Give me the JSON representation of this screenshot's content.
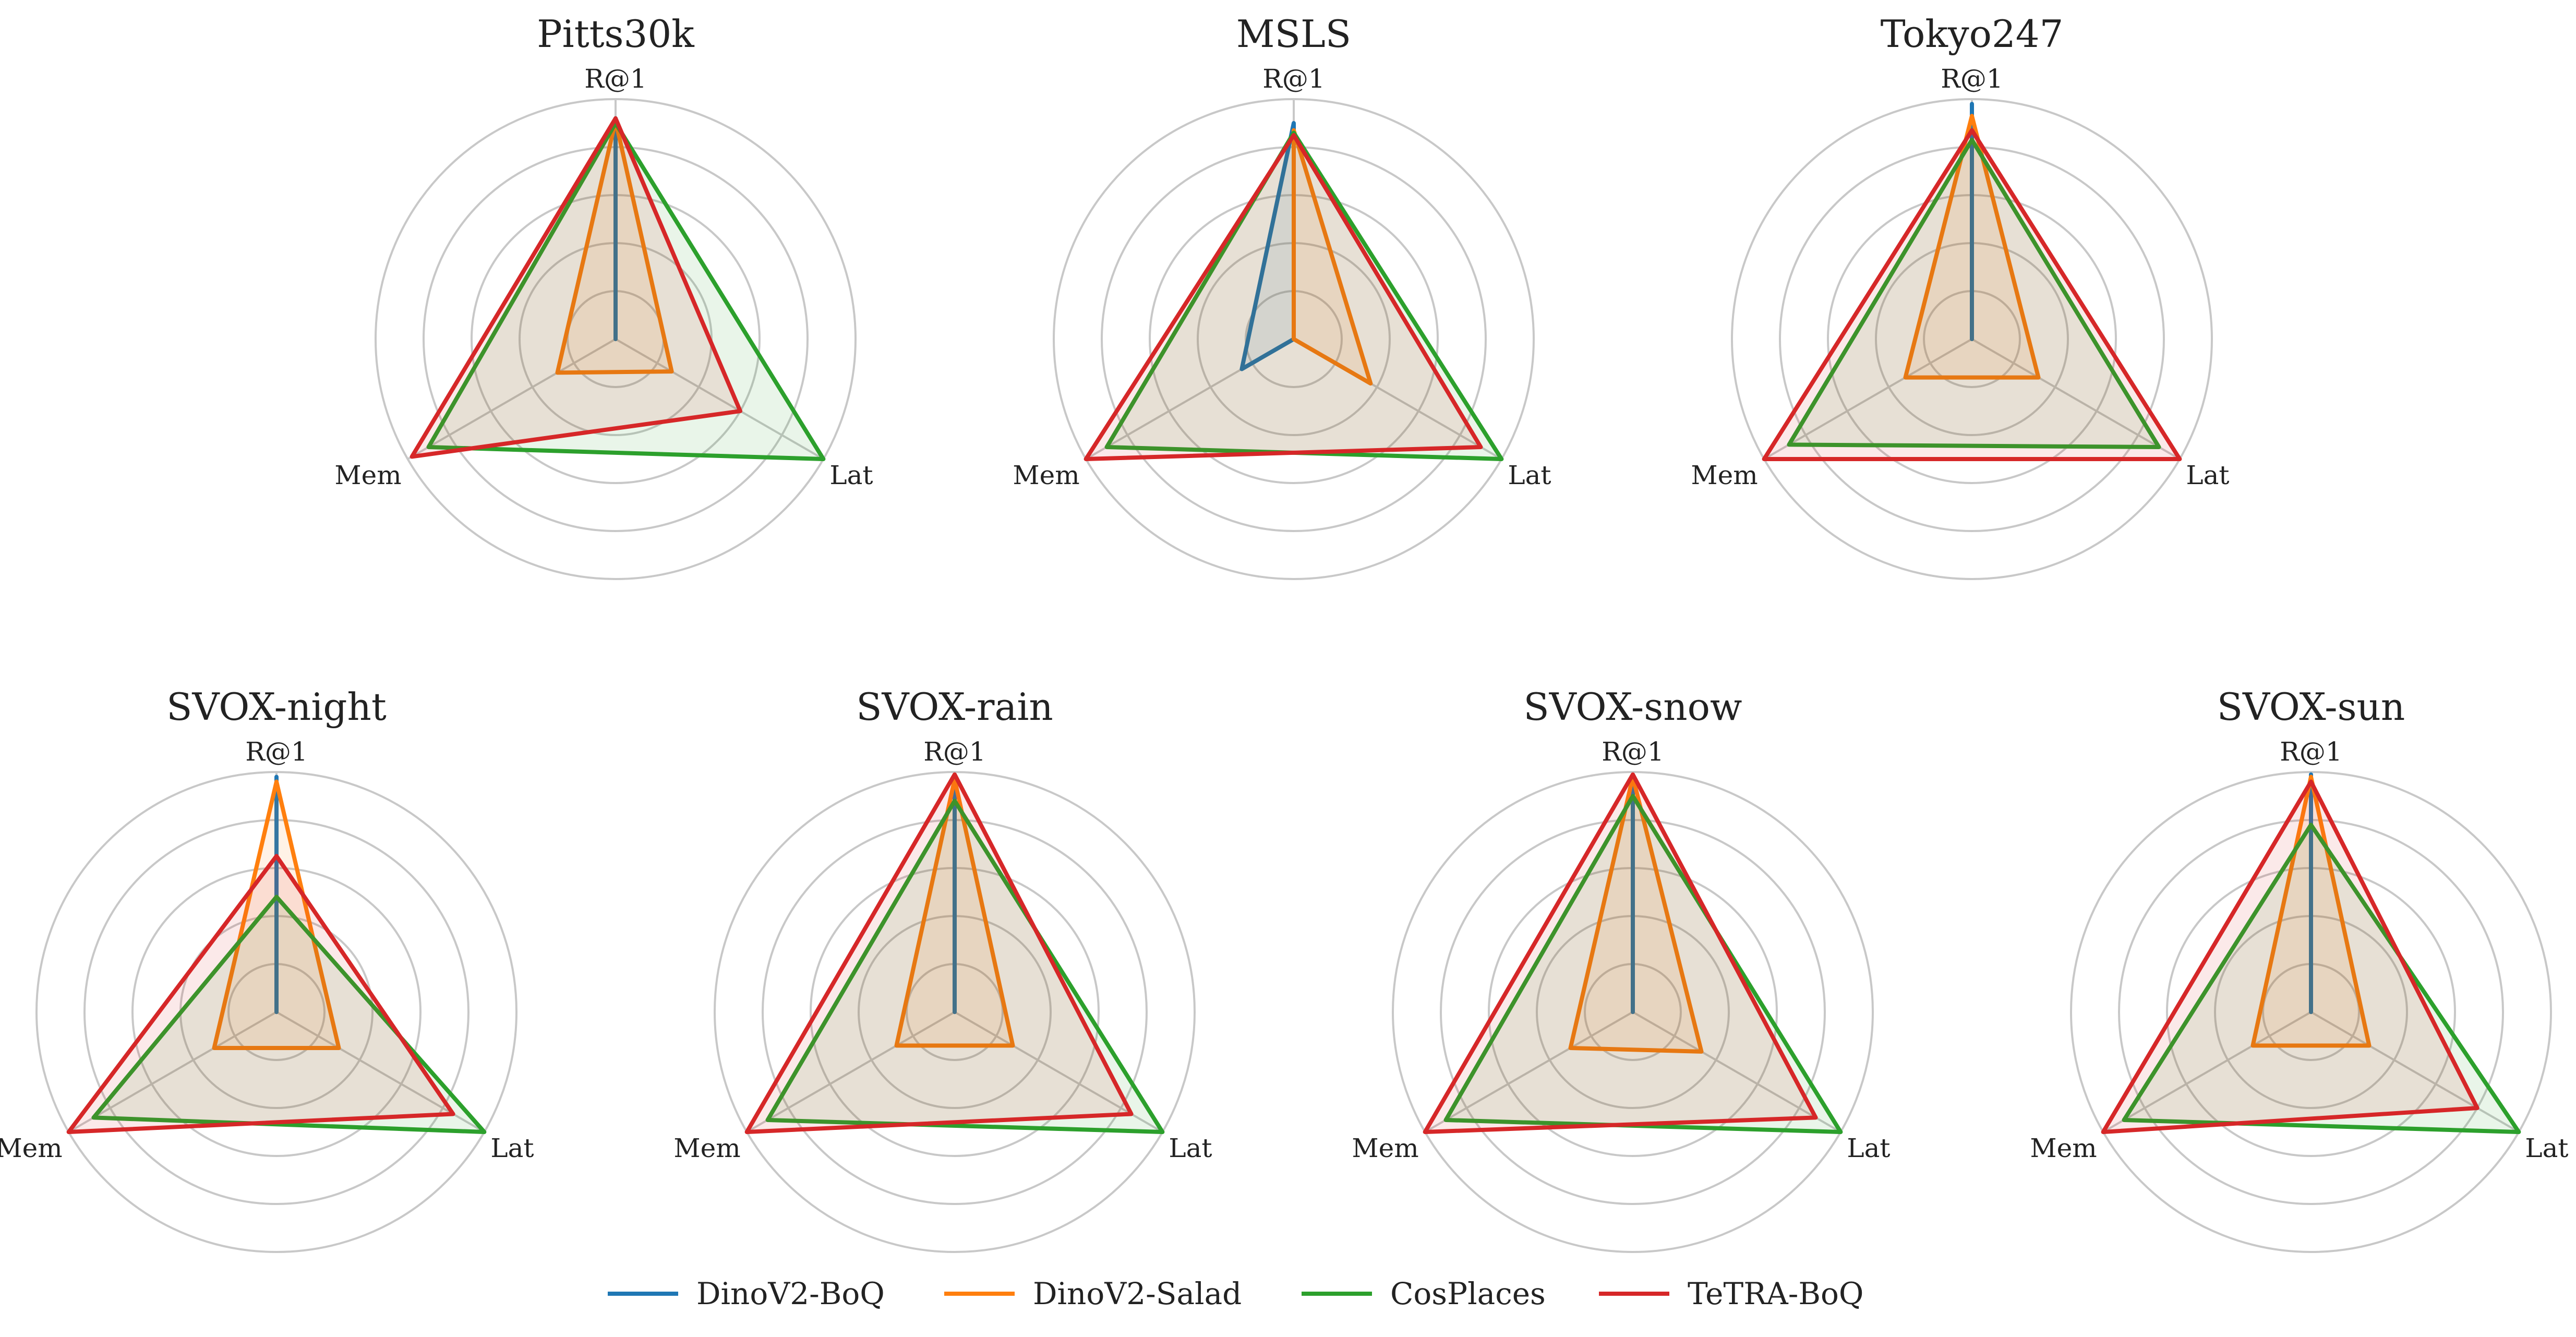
{
  "chart_data": [
    {
      "type": "radar",
      "title": "Pitts30k",
      "axes": [
        "R@1",
        "Lat",
        "Mem"
      ],
      "rmax": 1.0,
      "rings": 5,
      "series": [
        {
          "name": "DinoV2-BoQ",
          "values": [
            0.92,
            0.0,
            0.0
          ]
        },
        {
          "name": "DinoV2-Salad",
          "values": [
            0.91,
            0.27,
            0.28
          ]
        },
        {
          "name": "CosPlaces",
          "values": [
            0.9,
            1.0,
            0.9
          ]
        },
        {
          "name": "TeTRA-BoQ",
          "values": [
            0.92,
            0.6,
            0.98
          ]
        }
      ]
    },
    {
      "type": "radar",
      "title": "MSLS",
      "axes": [
        "R@1",
        "Lat",
        "Mem"
      ],
      "rmax": 1.0,
      "rings": 5,
      "series": [
        {
          "name": "DinoV2-BoQ",
          "values": [
            0.9,
            0.0,
            0.25
          ]
        },
        {
          "name": "DinoV2-Salad",
          "values": [
            0.87,
            0.37,
            0.0
          ]
        },
        {
          "name": "CosPlaces",
          "values": [
            0.86,
            1.0,
            0.9
          ]
        },
        {
          "name": "TeTRA-BoQ",
          "values": [
            0.85,
            0.9,
            1.0
          ]
        }
      ]
    },
    {
      "type": "radar",
      "title": "Tokyo247",
      "axes": [
        "R@1",
        "Lat",
        "Mem"
      ],
      "rmax": 1.0,
      "rings": 5,
      "series": [
        {
          "name": "DinoV2-BoQ",
          "values": [
            0.98,
            0.0,
            0.0
          ]
        },
        {
          "name": "DinoV2-Salad",
          "values": [
            0.93,
            0.32,
            0.32
          ]
        },
        {
          "name": "CosPlaces",
          "values": [
            0.83,
            0.9,
            0.88
          ]
        },
        {
          "name": "TeTRA-BoQ",
          "values": [
            0.87,
            1.0,
            1.0
          ]
        }
      ]
    },
    {
      "type": "radar",
      "title": "SVOX-night",
      "axes": [
        "R@1",
        "Lat",
        "Mem"
      ],
      "rmax": 1.0,
      "rings": 5,
      "series": [
        {
          "name": "DinoV2-BoQ",
          "values": [
            0.98,
            0.0,
            0.0
          ]
        },
        {
          "name": "DinoV2-Salad",
          "values": [
            0.96,
            0.3,
            0.3
          ]
        },
        {
          "name": "CosPlaces",
          "values": [
            0.48,
            1.0,
            0.88
          ]
        },
        {
          "name": "TeTRA-BoQ",
          "values": [
            0.65,
            0.85,
            1.0
          ]
        }
      ]
    },
    {
      "type": "radar",
      "title": "SVOX-rain",
      "axes": [
        "R@1",
        "Lat",
        "Mem"
      ],
      "rmax": 1.0,
      "rings": 5,
      "series": [
        {
          "name": "DinoV2-BoQ",
          "values": [
            0.97,
            0.0,
            0.0
          ]
        },
        {
          "name": "DinoV2-Salad",
          "values": [
            0.97,
            0.28,
            0.28
          ]
        },
        {
          "name": "CosPlaces",
          "values": [
            0.88,
            1.0,
            0.9
          ]
        },
        {
          "name": "TeTRA-BoQ",
          "values": [
            0.99,
            0.85,
            1.0
          ]
        }
      ]
    },
    {
      "type": "radar",
      "title": "SVOX-snow",
      "axes": [
        "R@1",
        "Lat",
        "Mem"
      ],
      "rmax": 1.0,
      "rings": 5,
      "series": [
        {
          "name": "DinoV2-BoQ",
          "values": [
            0.98,
            0.0,
            0.0
          ]
        },
        {
          "name": "DinoV2-Salad",
          "values": [
            0.98,
            0.33,
            0.3
          ]
        },
        {
          "name": "CosPlaces",
          "values": [
            0.9,
            1.0,
            0.9
          ]
        },
        {
          "name": "TeTRA-BoQ",
          "values": [
            0.99,
            0.88,
            1.0
          ]
        }
      ]
    },
    {
      "type": "radar",
      "title": "SVOX-sun",
      "axes": [
        "R@1",
        "Lat",
        "Mem"
      ],
      "rmax": 1.0,
      "rings": 5,
      "series": [
        {
          "name": "DinoV2-BoQ",
          "values": [
            0.99,
            0.0,
            0.0
          ]
        },
        {
          "name": "DinoV2-Salad",
          "values": [
            0.98,
            0.28,
            0.28
          ]
        },
        {
          "name": "CosPlaces",
          "values": [
            0.78,
            1.0,
            0.9
          ]
        },
        {
          "name": "TeTRA-BoQ",
          "values": [
            0.96,
            0.8,
            1.0
          ]
        }
      ]
    }
  ],
  "legend": {
    "placement": "bottom-center",
    "entries": [
      "DinoV2-BoQ",
      "DinoV2-Salad",
      "CosPlaces",
      "TeTRA-BoQ"
    ]
  },
  "colors": {
    "DinoV2-BoQ": "#1f77b4",
    "DinoV2-Salad": "#ff7f0e",
    "CosPlaces": "#2ca02c",
    "TeTRA-BoQ": "#d62728",
    "grid": "#c8c8c8",
    "text": "#222222"
  }
}
